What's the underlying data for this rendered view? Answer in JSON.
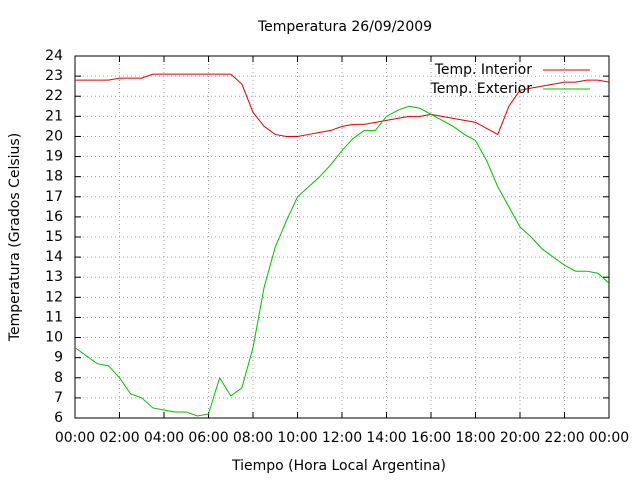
{
  "chart_data": {
    "type": "line",
    "title": "Temperatura 26/09/2009",
    "xlabel": "Tiempo (Hora Local Argentina)",
    "ylabel": "Temperatura (Grados Celsius)",
    "x": [
      0,
      0.5,
      1,
      1.5,
      2,
      2.5,
      3,
      3.5,
      4,
      4.5,
      5,
      5.5,
      6,
      6.5,
      7,
      7.5,
      8,
      8.5,
      9,
      9.5,
      10,
      10.5,
      11,
      11.5,
      12,
      12.5,
      13,
      13.5,
      14,
      14.5,
      15,
      15.5,
      16,
      16.5,
      17,
      17.5,
      18,
      18.5,
      19,
      19.5,
      20,
      20.5,
      21,
      21.5,
      22,
      22.5,
      23,
      23.5,
      24
    ],
    "series": [
      {
        "name": "Temp. Interior",
        "color": "#e00000",
        "values": [
          22.8,
          22.8,
          22.8,
          22.8,
          22.9,
          22.9,
          22.9,
          23.1,
          23.1,
          23.1,
          23.1,
          23.1,
          23.1,
          23.1,
          23.1,
          22.6,
          21.2,
          20.5,
          20.1,
          20.0,
          20.0,
          20.1,
          20.2,
          20.3,
          20.5,
          20.6,
          20.6,
          20.7,
          20.8,
          20.9,
          21.0,
          21.0,
          21.1,
          21.0,
          20.9,
          20.8,
          20.7,
          20.4,
          20.1,
          21.5,
          22.3,
          22.4,
          22.5,
          22.6,
          22.7,
          22.7,
          22.8,
          22.8,
          22.7
        ]
      },
      {
        "name": "Temp. Exterior",
        "color": "#00c000",
        "values": [
          9.5,
          9.1,
          8.7,
          8.6,
          8.0,
          7.2,
          7.0,
          6.5,
          6.4,
          6.3,
          6.3,
          6.1,
          6.2,
          8.0,
          7.1,
          7.5,
          9.5,
          12.5,
          14.5,
          15.8,
          17.0,
          17.5,
          18.0,
          18.6,
          19.3,
          19.9,
          20.3,
          20.3,
          21.0,
          21.3,
          21.5,
          21.4,
          21.1,
          20.8,
          20.5,
          20.1,
          19.8,
          18.8,
          17.5,
          16.5,
          15.5,
          15.0,
          14.4,
          14.0,
          13.6,
          13.3,
          13.3,
          13.2,
          12.7
        ]
      }
    ],
    "xlim": [
      0,
      24
    ],
    "xticks": [
      {
        "value": 0,
        "label": "00:00"
      },
      {
        "value": 2,
        "label": "02:00"
      },
      {
        "value": 4,
        "label": "04:00"
      },
      {
        "value": 6,
        "label": "06:00"
      },
      {
        "value": 8,
        "label": "08:00"
      },
      {
        "value": 10,
        "label": "10:00"
      },
      {
        "value": 12,
        "label": "12:00"
      },
      {
        "value": 14,
        "label": "14:00"
      },
      {
        "value": 16,
        "label": "16:00"
      },
      {
        "value": 18,
        "label": "18:00"
      },
      {
        "value": 20,
        "label": "20:00"
      },
      {
        "value": 22,
        "label": "22:00"
      },
      {
        "value": 24,
        "label": "00:00"
      }
    ],
    "ylim": [
      6,
      24
    ],
    "yticks": [
      6,
      7,
      8,
      9,
      10,
      11,
      12,
      13,
      14,
      15,
      16,
      17,
      18,
      19,
      20,
      21,
      22,
      23,
      24
    ],
    "grid": true
  }
}
